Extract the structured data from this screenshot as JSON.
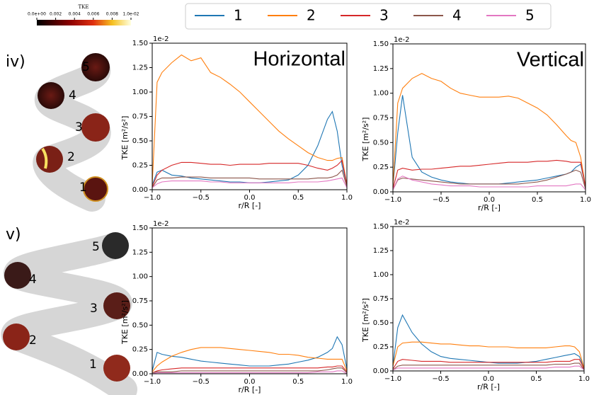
{
  "colorbar": {
    "title": "TKE",
    "ticks": [
      {
        "value": 0,
        "label": "0.0e+00"
      },
      {
        "value": 0.002,
        "label": "0.002"
      },
      {
        "value": 0.004,
        "label": "0.004"
      },
      {
        "value": 0.006,
        "label": "0.006"
      },
      {
        "value": 0.008,
        "label": "0.008"
      },
      {
        "value": 0.01,
        "label": "1.0e-02"
      }
    ]
  },
  "legend": {
    "entries": [
      {
        "name": "1",
        "color": "#1f77b4"
      },
      {
        "name": "2",
        "color": "#ff7f0e"
      },
      {
        "name": "3",
        "color": "#d62728"
      },
      {
        "name": "4",
        "color": "#8c564b"
      },
      {
        "name": "5",
        "color": "#e377c2"
      }
    ]
  },
  "helices": [
    {
      "row_label": "iv)",
      "labels": [
        "5",
        "4",
        "3",
        "2",
        "1"
      ]
    },
    {
      "row_label": "v)",
      "labels": [
        "5",
        "4",
        "3",
        "2",
        "1"
      ]
    }
  ],
  "chart_data": [
    {
      "type": "line",
      "title": "Horizontal",
      "xlabel": "r/R [-]",
      "ylabel": "TKE [m²/s²]",
      "offset_label": "1e-2",
      "x": [
        -1,
        -0.95,
        -0.9,
        -0.8,
        -0.7,
        -0.6,
        -0.5,
        -0.4,
        -0.3,
        -0.2,
        -0.1,
        0,
        0.1,
        0.2,
        0.3,
        0.4,
        0.5,
        0.6,
        0.7,
        0.8,
        0.85,
        0.9,
        0.95,
        1
      ],
      "xlim": [
        -1,
        1
      ],
      "ylim": [
        0,
        1.5
      ],
      "xticks": [
        {
          "value": -1,
          "label": "−1.0"
        },
        {
          "value": -0.5,
          "label": "−0.5"
        },
        {
          "value": 0,
          "label": "0.0"
        },
        {
          "value": 0.5,
          "label": "0.5"
        },
        {
          "value": 1,
          "label": "1.0"
        }
      ],
      "yticks": [
        {
          "value": 0,
          "label": "0.00"
        },
        {
          "value": 0.25,
          "label": "0.25"
        },
        {
          "value": 0.5,
          "label": "0.50"
        },
        {
          "value": 0.75,
          "label": "0.75"
        },
        {
          "value": 1,
          "label": "1.00"
        },
        {
          "value": 1.25,
          "label": "1.25"
        },
        {
          "value": 1.5,
          "label": "1.50"
        }
      ],
      "series": [
        {
          "values": [
            0.05,
            0.18,
            0.2,
            0.15,
            0.14,
            0.12,
            0.11,
            0.1,
            0.09,
            0.08,
            0.08,
            0.07,
            0.07,
            0.08,
            0.09,
            0.1,
            0.15,
            0.25,
            0.45,
            0.72,
            0.8,
            0.6,
            0.25,
            0.05
          ]
        },
        {
          "values": [
            0.05,
            1.1,
            1.2,
            1.3,
            1.38,
            1.32,
            1.35,
            1.2,
            1.15,
            1.08,
            1.0,
            0.9,
            0.8,
            0.7,
            0.6,
            0.52,
            0.45,
            0.38,
            0.33,
            0.3,
            0.3,
            0.32,
            0.33,
            0.05
          ]
        },
        {
          "values": [
            0.03,
            0.15,
            0.2,
            0.25,
            0.28,
            0.28,
            0.27,
            0.26,
            0.26,
            0.25,
            0.26,
            0.26,
            0.26,
            0.27,
            0.27,
            0.27,
            0.27,
            0.25,
            0.22,
            0.2,
            0.22,
            0.25,
            0.3,
            0.05
          ]
        },
        {
          "values": [
            0.02,
            0.1,
            0.12,
            0.12,
            0.13,
            0.13,
            0.13,
            0.12,
            0.12,
            0.12,
            0.12,
            0.12,
            0.11,
            0.11,
            0.11,
            0.11,
            0.11,
            0.11,
            0.12,
            0.12,
            0.13,
            0.15,
            0.2,
            0.03
          ]
        },
        {
          "values": [
            0.02,
            0.06,
            0.08,
            0.09,
            0.09,
            0.09,
            0.09,
            0.08,
            0.08,
            0.07,
            0.07,
            0.07,
            0.07,
            0.07,
            0.07,
            0.07,
            0.08,
            0.08,
            0.08,
            0.09,
            0.1,
            0.11,
            0.12,
            0.02
          ]
        }
      ]
    },
    {
      "type": "line",
      "title": "Vertical",
      "xlabel": "r/R [-]",
      "ylabel": "TKE [m²/s²]",
      "offset_label": "1e-2",
      "x": [
        -1,
        -0.95,
        -0.9,
        -0.8,
        -0.7,
        -0.6,
        -0.5,
        -0.4,
        -0.3,
        -0.2,
        -0.1,
        0,
        0.1,
        0.2,
        0.3,
        0.4,
        0.5,
        0.6,
        0.7,
        0.8,
        0.85,
        0.9,
        0.95,
        1
      ],
      "xlim": [
        -1,
        1
      ],
      "ylim": [
        0,
        1.5
      ],
      "xticks": [
        {
          "value": -1,
          "label": "−1.0"
        },
        {
          "value": -0.5,
          "label": "−0.5"
        },
        {
          "value": 0,
          "label": "0.0"
        },
        {
          "value": 0.5,
          "label": "0.5"
        },
        {
          "value": 1,
          "label": "1.0"
        }
      ],
      "yticks": [
        {
          "value": 0,
          "label": "0.00"
        },
        {
          "value": 0.25,
          "label": "0.25"
        },
        {
          "value": 0.5,
          "label": "0.50"
        },
        {
          "value": 0.75,
          "label": "0.75"
        },
        {
          "value": 1,
          "label": "1.00"
        },
        {
          "value": 1.25,
          "label": "1.25"
        },
        {
          "value": 1.5,
          "label": "1.50"
        }
      ],
      "series": [
        {
          "values": [
            0.05,
            0.6,
            0.98,
            0.35,
            0.2,
            0.15,
            0.12,
            0.1,
            0.09,
            0.08,
            0.08,
            0.08,
            0.08,
            0.09,
            0.1,
            0.11,
            0.12,
            0.14,
            0.16,
            0.18,
            0.2,
            0.25,
            0.28,
            0.05
          ]
        },
        {
          "values": [
            0.05,
            0.9,
            1.05,
            1.15,
            1.2,
            1.15,
            1.12,
            1.05,
            1.0,
            0.98,
            0.96,
            0.96,
            0.96,
            0.97,
            0.95,
            0.9,
            0.85,
            0.78,
            0.68,
            0.57,
            0.52,
            0.5,
            0.35,
            0.05
          ]
        },
        {
          "values": [
            0.03,
            0.22,
            0.24,
            0.22,
            0.23,
            0.23,
            0.24,
            0.25,
            0.26,
            0.26,
            0.27,
            0.28,
            0.29,
            0.3,
            0.3,
            0.3,
            0.31,
            0.31,
            0.32,
            0.31,
            0.3,
            0.3,
            0.3,
            0.05
          ]
        },
        {
          "values": [
            0.02,
            0.12,
            0.14,
            0.13,
            0.12,
            0.11,
            0.1,
            0.09,
            0.08,
            0.08,
            0.08,
            0.08,
            0.08,
            0.08,
            0.08,
            0.09,
            0.1,
            0.12,
            0.15,
            0.18,
            0.2,
            0.22,
            0.2,
            0.03
          ]
        },
        {
          "values": [
            0.02,
            0.13,
            0.16,
            0.12,
            0.1,
            0.08,
            0.07,
            0.06,
            0.06,
            0.06,
            0.05,
            0.05,
            0.05,
            0.05,
            0.05,
            0.05,
            0.06,
            0.06,
            0.06,
            0.06,
            0.07,
            0.08,
            0.08,
            0.02
          ]
        }
      ]
    },
    {
      "type": "line",
      "xlabel": "r/R [-]",
      "ylabel": "TKE [m²/s²]",
      "offset_label": "1e-2",
      "x": [
        -1,
        -0.95,
        -0.9,
        -0.8,
        -0.7,
        -0.6,
        -0.5,
        -0.4,
        -0.3,
        -0.2,
        -0.1,
        0,
        0.1,
        0.2,
        0.3,
        0.4,
        0.5,
        0.6,
        0.7,
        0.8,
        0.85,
        0.9,
        0.95,
        1
      ],
      "xlim": [
        -1,
        1
      ],
      "ylim": [
        0,
        1.5
      ],
      "xticks": [
        {
          "value": -1,
          "label": "−1.0"
        },
        {
          "value": -0.5,
          "label": "−0.5"
        },
        {
          "value": 0,
          "label": "0.0"
        },
        {
          "value": 0.5,
          "label": "0.5"
        },
        {
          "value": 1,
          "label": "1.0"
        }
      ],
      "yticks": [
        {
          "value": 0,
          "label": "0.00"
        },
        {
          "value": 0.25,
          "label": "0.25"
        },
        {
          "value": 0.5,
          "label": "0.50"
        },
        {
          "value": 0.75,
          "label": "0.75"
        },
        {
          "value": 1,
          "label": "1.00"
        },
        {
          "value": 1.25,
          "label": "1.25"
        },
        {
          "value": 1.5,
          "label": "1.50"
        }
      ],
      "series": [
        {
          "values": [
            0.03,
            0.22,
            0.2,
            0.18,
            0.17,
            0.15,
            0.13,
            0.12,
            0.11,
            0.1,
            0.09,
            0.08,
            0.08,
            0.08,
            0.09,
            0.1,
            0.12,
            0.14,
            0.17,
            0.22,
            0.26,
            0.38,
            0.3,
            0.05
          ]
        },
        {
          "values": [
            0.02,
            0.08,
            0.12,
            0.18,
            0.22,
            0.25,
            0.27,
            0.27,
            0.27,
            0.26,
            0.25,
            0.24,
            0.23,
            0.22,
            0.2,
            0.2,
            0.19,
            0.17,
            0.16,
            0.15,
            0.15,
            0.15,
            0.15,
            0.03
          ]
        },
        {
          "values": [
            0.01,
            0.03,
            0.04,
            0.05,
            0.06,
            0.06,
            0.06,
            0.06,
            0.06,
            0.06,
            0.06,
            0.06,
            0.06,
            0.06,
            0.06,
            0.06,
            0.06,
            0.06,
            0.06,
            0.07,
            0.07,
            0.08,
            0.08,
            0.02
          ]
        },
        {
          "values": [
            0.01,
            0.02,
            0.02,
            0.02,
            0.03,
            0.03,
            0.03,
            0.03,
            0.03,
            0.03,
            0.03,
            0.03,
            0.03,
            0.03,
            0.03,
            0.03,
            0.03,
            0.03,
            0.03,
            0.04,
            0.05,
            0.06,
            0.06,
            0.01
          ]
        },
        {
          "values": [
            0,
            0.01,
            0.01,
            0.01,
            0.01,
            0.01,
            0.01,
            0.01,
            0.01,
            0.01,
            0.01,
            0.01,
            0.01,
            0.01,
            0.01,
            0.01,
            0.01,
            0.01,
            0.02,
            0.02,
            0.02,
            0.03,
            0.03,
            0
          ]
        }
      ]
    },
    {
      "type": "line",
      "xlabel": "r/R [-]",
      "ylabel": "TKE [m²/s²]",
      "offset_label": "1e-2",
      "x": [
        -1,
        -0.95,
        -0.9,
        -0.8,
        -0.7,
        -0.6,
        -0.5,
        -0.4,
        -0.3,
        -0.2,
        -0.1,
        0,
        0.1,
        0.2,
        0.3,
        0.4,
        0.5,
        0.6,
        0.7,
        0.8,
        0.85,
        0.9,
        0.95,
        1
      ],
      "xlim": [
        -1,
        1
      ],
      "ylim": [
        0,
        1.5
      ],
      "xticks": [
        {
          "value": -1,
          "label": "−1.0"
        },
        {
          "value": -0.5,
          "label": "−0.5"
        },
        {
          "value": 0,
          "label": "0.0"
        },
        {
          "value": 0.5,
          "label": "0.5"
        },
        {
          "value": 1,
          "label": "1.0"
        }
      ],
      "yticks": [
        {
          "value": 0,
          "label": "0.00"
        },
        {
          "value": 0.25,
          "label": "0.25"
        },
        {
          "value": 0.5,
          "label": "0.50"
        },
        {
          "value": 0.75,
          "label": "0.75"
        },
        {
          "value": 1,
          "label": "1.00"
        },
        {
          "value": 1.25,
          "label": "1.25"
        },
        {
          "value": 1.5,
          "label": "1.50"
        }
      ],
      "series": [
        {
          "values": [
            0.05,
            0.45,
            0.58,
            0.4,
            0.28,
            0.2,
            0.15,
            0.13,
            0.12,
            0.11,
            0.1,
            0.09,
            0.08,
            0.08,
            0.08,
            0.09,
            0.1,
            0.12,
            0.14,
            0.16,
            0.17,
            0.18,
            0.15,
            0.03
          ]
        },
        {
          "values": [
            0.05,
            0.25,
            0.29,
            0.3,
            0.3,
            0.29,
            0.28,
            0.28,
            0.27,
            0.26,
            0.26,
            0.25,
            0.25,
            0.25,
            0.24,
            0.24,
            0.24,
            0.24,
            0.25,
            0.26,
            0.26,
            0.25,
            0.2,
            0.03
          ]
        },
        {
          "values": [
            0.02,
            0.1,
            0.12,
            0.11,
            0.1,
            0.1,
            0.1,
            0.09,
            0.09,
            0.09,
            0.09,
            0.09,
            0.09,
            0.09,
            0.09,
            0.09,
            0.09,
            0.09,
            0.1,
            0.1,
            0.1,
            0.12,
            0.12,
            0.02
          ]
        },
        {
          "values": [
            0.01,
            0.05,
            0.06,
            0.06,
            0.06,
            0.06,
            0.06,
            0.06,
            0.06,
            0.06,
            0.06,
            0.06,
            0.06,
            0.06,
            0.06,
            0.06,
            0.06,
            0.06,
            0.07,
            0.07,
            0.07,
            0.08,
            0.08,
            0.01
          ]
        },
        {
          "values": [
            0.01,
            0.03,
            0.03,
            0.03,
            0.03,
            0.03,
            0.03,
            0.03,
            0.03,
            0.03,
            0.03,
            0.03,
            0.03,
            0.03,
            0.03,
            0.03,
            0.03,
            0.03,
            0.04,
            0.04,
            0.04,
            0.05,
            0.05,
            0.01
          ]
        }
      ]
    }
  ]
}
